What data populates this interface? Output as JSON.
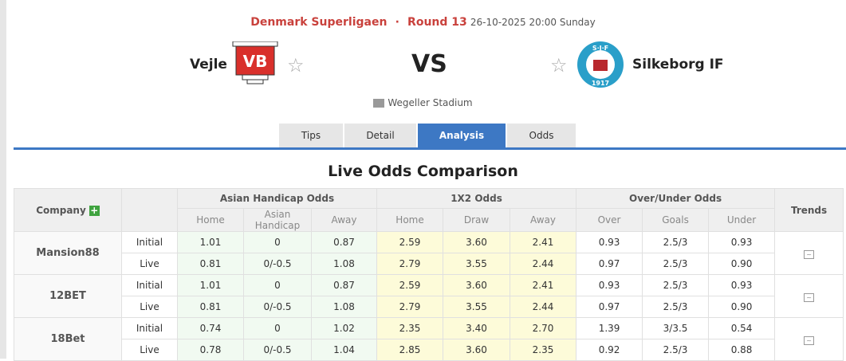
{
  "match": {
    "league": "Denmark Superligaen",
    "separator": "·",
    "round": "Round 13",
    "datetime": "26-10-2025 20:00 Sunday",
    "home": "Vejle",
    "away": "Silkeborg IF",
    "vs": "VS",
    "stadium": "Wegeller Stadium",
    "home_logo_text": "VB",
    "away_logo_text": "S·I·F 1917"
  },
  "tabs": [
    {
      "label": "Tips"
    },
    {
      "label": "Detail"
    },
    {
      "label": "Analysis",
      "active": true
    },
    {
      "label": "Odds"
    }
  ],
  "section_title": "Live Odds Comparison",
  "table": {
    "headers": {
      "company": "Company",
      "ah": "Asian Handicap Odds",
      "x2": "1X2 Odds",
      "ou": "Over/Under Odds",
      "trends": "Trends"
    },
    "subheaders": {
      "ah": [
        "Home",
        "Asian Handicap",
        "Away"
      ],
      "x2": [
        "Home",
        "Draw",
        "Away"
      ],
      "ou": [
        "Over",
        "Goals",
        "Under"
      ]
    },
    "rows": [
      {
        "company": "Mansion88",
        "lines": [
          {
            "type": "Initial",
            "ah": [
              "1.01",
              "0",
              "0.87"
            ],
            "x2": [
              "2.59",
              "3.60",
              "2.41"
            ],
            "ou": [
              "0.93",
              "2.5/3",
              "0.93"
            ]
          },
          {
            "type": "Live",
            "ah": [
              "0.81",
              "0/-0.5",
              "1.08"
            ],
            "x2": [
              "2.79",
              "3.55",
              "2.44"
            ],
            "ou": [
              "0.97",
              "2.5/3",
              "0.90"
            ]
          }
        ]
      },
      {
        "company": "12BET",
        "lines": [
          {
            "type": "Initial",
            "ah": [
              "1.01",
              "0",
              "0.87"
            ],
            "x2": [
              "2.59",
              "3.60",
              "2.41"
            ],
            "ou": [
              "0.93",
              "2.5/3",
              "0.93"
            ]
          },
          {
            "type": "Live",
            "ah": [
              "0.81",
              "0/-0.5",
              "1.08"
            ],
            "x2": [
              "2.79",
              "3.55",
              "2.44"
            ],
            "ou": [
              "0.97",
              "2.5/3",
              "0.90"
            ]
          }
        ]
      },
      {
        "company": "18Bet",
        "lines": [
          {
            "type": "Initial",
            "ah": [
              "0.74",
              "0",
              "1.02"
            ],
            "x2": [
              "2.35",
              "3.40",
              "2.70"
            ],
            "ou": [
              "1.39",
              "3/3.5",
              "0.54"
            ]
          },
          {
            "type": "Live",
            "ah": [
              "0.78",
              "0/-0.5",
              "1.04"
            ],
            "x2": [
              "2.85",
              "3.60",
              "2.35"
            ],
            "ou": [
              "0.92",
              "2.5/3",
              "0.88"
            ]
          }
        ]
      }
    ]
  },
  "colors": {
    "league": "#c9413c",
    "accent": "#3d78c4",
    "ah_bg": "#f1faf1",
    "x2_bg": "#fdfbd9"
  }
}
